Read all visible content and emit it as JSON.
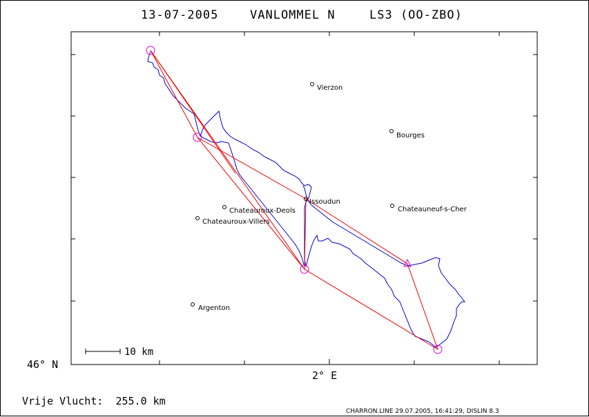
{
  "title": {
    "date": "13-07-2005",
    "pilot": "VANLOMMEL N",
    "glider": "LS3 (OO-ZBO)"
  },
  "axes": {
    "lat_label": "46° N",
    "lon_label": "2° E"
  },
  "scale_bar": {
    "label": "10 km"
  },
  "towns": [
    {
      "name": "Vierzon"
    },
    {
      "name": "Bourges"
    },
    {
      "name": "Issoudun"
    },
    {
      "name": "Chateauroux-Deols"
    },
    {
      "name": "Chateauneuf-s-Cher"
    },
    {
      "name": "Chateauroux-Villers"
    },
    {
      "name": "Argenton"
    }
  ],
  "footer": {
    "distance": "Vrije Vlucht:  255.0 km",
    "credit": "CHARRON.LINE 29.07.2005, 16:41:29, DISLIN 8.3"
  },
  "colors": {
    "track": "#0000cc",
    "task": "#ee0000",
    "turnpoint": "#dd00dd",
    "frame": "#000000"
  }
}
